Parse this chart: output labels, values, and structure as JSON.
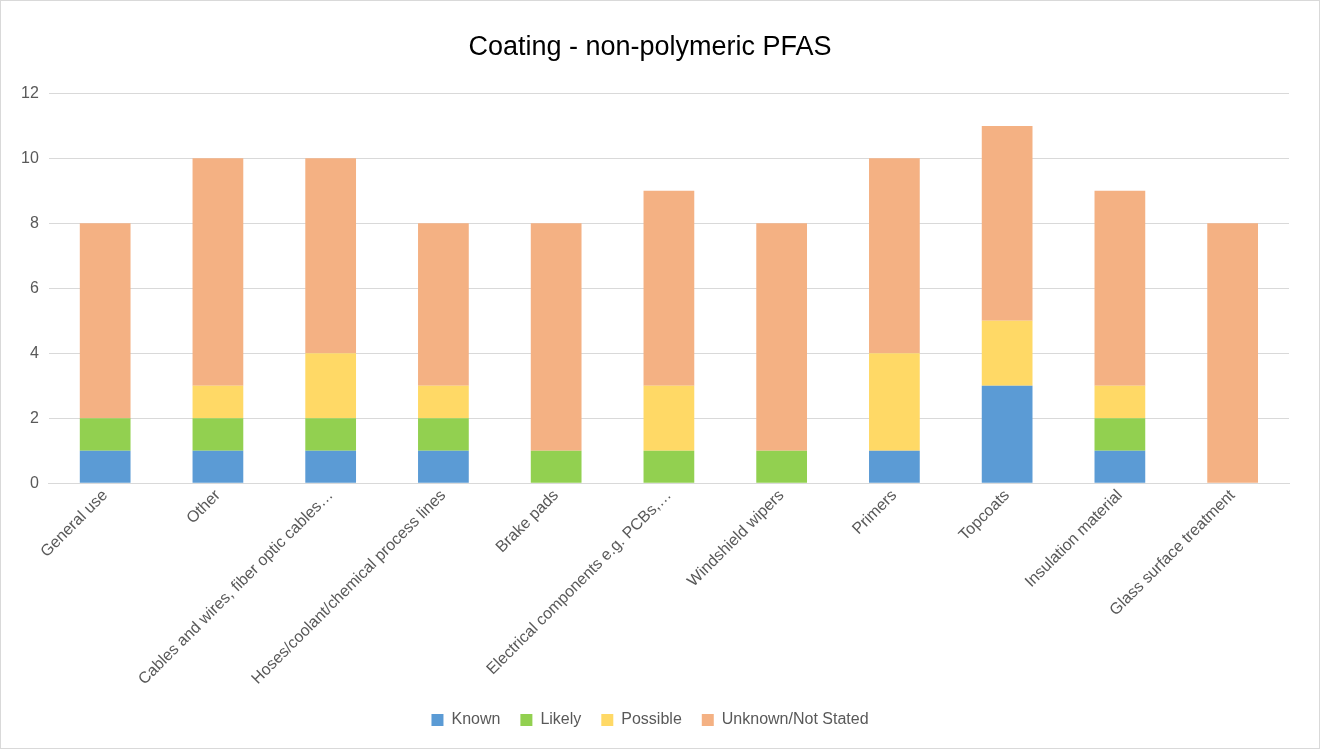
{
  "chart_data": {
    "type": "bar",
    "title": "Coating - non-polymeric PFAS",
    "stacked": true,
    "categories": [
      "General use",
      "Other",
      "Cables and wires, fiber optic cables…",
      "Hoses/coolant/chemical process lines",
      "Brake pads",
      "Electrical components e.g. PCBs,…",
      "Windshield wipers",
      "Primers",
      "Topcoats",
      "Insulation material",
      "Glass surface treatment"
    ],
    "series": [
      {
        "name": "Known",
        "color": "#5b9bd5",
        "values": [
          1,
          1,
          1,
          1,
          0,
          0,
          0,
          1,
          3,
          1,
          0
        ]
      },
      {
        "name": "Likely",
        "color": "#92d050",
        "values": [
          1,
          1,
          1,
          1,
          1,
          1,
          1,
          0,
          0,
          1,
          0
        ]
      },
      {
        "name": "Possible",
        "color": "#ffd966",
        "values": [
          0,
          1,
          2,
          1,
          0,
          2,
          0,
          3,
          2,
          1,
          0
        ]
      },
      {
        "name": "Unknown/Not Stated",
        "color": "#f4b183",
        "values": [
          6,
          7,
          6,
          5,
          7,
          6,
          7,
          6,
          6,
          6,
          8
        ]
      }
    ],
    "ylim": [
      0,
      12
    ],
    "yticks": [
      0,
      2,
      4,
      6,
      8,
      10,
      12
    ],
    "grid": "y",
    "legend": "bottom"
  }
}
